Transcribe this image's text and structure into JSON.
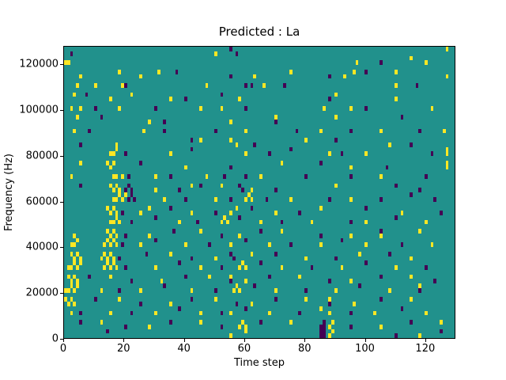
{
  "chart_data": {
    "type": "heatmap",
    "title": "Predicted : La",
    "xlabel": "Time step",
    "ylabel": "Frequency (Hz)",
    "x_ticks": [
      0,
      20,
      40,
      60,
      80,
      100,
      120
    ],
    "y_ticks": [
      0,
      20000,
      40000,
      60000,
      80000,
      100000,
      120000
    ],
    "x_range": [
      0,
      130
    ],
    "y_range": [
      0,
      128000
    ],
    "grid_cols": 130,
    "grid_rows": 64,
    "bin_hz": 2000,
    "legend": "none",
    "grid": false,
    "colors": {
      "background_mid": "#21918c",
      "high": "#fde724",
      "low": "#440154",
      "axes": "#000000",
      "figure_background": "#ffffff"
    },
    "yellow_cells": [
      [
        0,
        60
      ],
      [
        1,
        60
      ],
      [
        50,
        62
      ],
      [
        97,
        60
      ],
      [
        120,
        60
      ],
      [
        127,
        63
      ],
      [
        115,
        61
      ],
      [
        5,
        57
      ],
      [
        18,
        58
      ],
      [
        25,
        57
      ],
      [
        31,
        58
      ],
      [
        63,
        57
      ],
      [
        75,
        58
      ],
      [
        93,
        57
      ],
      [
        96,
        58
      ],
      [
        127,
        57
      ],
      [
        110,
        58
      ],
      [
        4,
        55
      ],
      [
        10,
        55
      ],
      [
        19,
        55
      ],
      [
        66,
        55
      ],
      [
        110,
        55
      ],
      [
        47,
        55
      ],
      [
        3,
        53
      ],
      [
        15,
        52
      ],
      [
        22,
        53
      ],
      [
        58,
        52
      ],
      [
        90,
        53
      ],
      [
        110,
        52
      ],
      [
        35,
        52
      ],
      [
        2,
        50
      ],
      [
        5,
        50
      ],
      [
        18,
        50
      ],
      [
        45,
        50
      ],
      [
        52,
        50
      ],
      [
        86,
        50
      ],
      [
        95,
        50
      ],
      [
        122,
        50
      ],
      [
        4,
        48
      ],
      [
        55,
        47
      ],
      [
        90,
        48
      ],
      [
        28,
        47
      ],
      [
        70,
        48
      ],
      [
        3,
        45
      ],
      [
        26,
        45
      ],
      [
        60,
        45
      ],
      [
        85,
        45
      ],
      [
        105,
        45
      ],
      [
        126,
        45
      ],
      [
        17,
        42
      ],
      [
        55,
        43
      ],
      [
        57,
        42
      ],
      [
        80,
        43
      ],
      [
        108,
        42
      ],
      [
        45,
        43
      ],
      [
        15,
        40
      ],
      [
        16,
        40
      ],
      [
        17,
        41
      ],
      [
        35,
        40
      ],
      [
        60,
        40
      ],
      [
        88,
        40
      ],
      [
        100,
        40
      ],
      [
        127,
        40
      ],
      [
        127,
        41
      ],
      [
        14,
        38
      ],
      [
        15,
        37
      ],
      [
        16,
        38
      ],
      [
        40,
        37
      ],
      [
        72,
        38
      ],
      [
        95,
        37
      ],
      [
        127,
        38
      ],
      [
        127,
        37
      ],
      [
        5,
        38
      ],
      [
        2,
        35
      ],
      [
        16,
        35
      ],
      [
        17,
        35
      ],
      [
        19,
        35
      ],
      [
        47,
        35
      ],
      [
        65,
        35
      ],
      [
        105,
        35
      ],
      [
        30,
        35
      ],
      [
        15,
        33
      ],
      [
        16,
        32
      ],
      [
        17,
        33
      ],
      [
        18,
        32
      ],
      [
        30,
        32
      ],
      [
        52,
        33
      ],
      [
        62,
        32
      ],
      [
        90,
        33
      ],
      [
        42,
        33
      ],
      [
        16,
        30
      ],
      [
        17,
        30
      ],
      [
        18,
        31
      ],
      [
        19,
        30
      ],
      [
        20,
        31
      ],
      [
        33,
        30
      ],
      [
        50,
        30
      ],
      [
        60,
        30
      ],
      [
        61,
        31
      ],
      [
        62,
        30
      ],
      [
        75,
        30
      ],
      [
        95,
        30
      ],
      [
        14,
        28
      ],
      [
        15,
        27
      ],
      [
        16,
        28
      ],
      [
        17,
        27
      ],
      [
        25,
        27
      ],
      [
        28,
        28
      ],
      [
        42,
        27
      ],
      [
        57,
        28
      ],
      [
        70,
        27
      ],
      [
        85,
        28
      ],
      [
        112,
        27
      ],
      [
        55,
        27
      ],
      [
        15,
        25
      ],
      [
        16,
        25
      ],
      [
        17,
        26
      ],
      [
        18,
        25
      ],
      [
        38,
        25
      ],
      [
        52,
        25
      ],
      [
        53,
        26
      ],
      [
        54,
        25
      ],
      [
        65,
        25
      ],
      [
        82,
        25
      ],
      [
        100,
        25
      ],
      [
        120,
        25
      ],
      [
        3,
        22
      ],
      [
        14,
        23
      ],
      [
        15,
        22
      ],
      [
        16,
        23
      ],
      [
        17,
        22
      ],
      [
        28,
        22
      ],
      [
        45,
        23
      ],
      [
        58,
        22
      ],
      [
        72,
        23
      ],
      [
        95,
        22
      ],
      [
        118,
        23
      ],
      [
        105,
        22
      ],
      [
        2,
        20
      ],
      [
        3,
        20
      ],
      [
        4,
        21
      ],
      [
        13,
        20
      ],
      [
        14,
        21
      ],
      [
        15,
        20
      ],
      [
        16,
        21
      ],
      [
        17,
        20
      ],
      [
        25,
        20
      ],
      [
        40,
        20
      ],
      [
        55,
        20
      ],
      [
        68,
        20
      ],
      [
        85,
        20
      ],
      [
        100,
        20
      ],
      [
        122,
        20
      ],
      [
        2,
        18
      ],
      [
        3,
        17
      ],
      [
        4,
        18
      ],
      [
        5,
        17
      ],
      [
        12,
        17
      ],
      [
        13,
        18
      ],
      [
        14,
        17
      ],
      [
        15,
        18
      ],
      [
        16,
        17
      ],
      [
        35,
        18
      ],
      [
        50,
        17
      ],
      [
        62,
        18
      ],
      [
        80,
        17
      ],
      [
        98,
        18
      ],
      [
        115,
        17
      ],
      [
        1,
        15
      ],
      [
        2,
        15
      ],
      [
        3,
        16
      ],
      [
        4,
        15
      ],
      [
        5,
        16
      ],
      [
        13,
        15
      ],
      [
        14,
        16
      ],
      [
        15,
        15
      ],
      [
        16,
        16
      ],
      [
        17,
        15
      ],
      [
        30,
        15
      ],
      [
        45,
        15
      ],
      [
        58,
        15
      ],
      [
        59,
        16
      ],
      [
        60,
        15
      ],
      [
        72,
        15
      ],
      [
        92,
        15
      ],
      [
        110,
        15
      ],
      [
        1,
        13
      ],
      [
        2,
        12
      ],
      [
        3,
        13
      ],
      [
        4,
        12
      ],
      [
        15,
        13
      ],
      [
        32,
        12
      ],
      [
        48,
        13
      ],
      [
        60,
        12
      ],
      [
        78,
        13
      ],
      [
        95,
        12
      ],
      [
        115,
        13
      ],
      [
        55,
        13
      ],
      [
        0,
        10
      ],
      [
        1,
        10
      ],
      [
        2,
        11
      ],
      [
        3,
        10
      ],
      [
        4,
        11
      ],
      [
        12,
        10
      ],
      [
        25,
        10
      ],
      [
        42,
        10
      ],
      [
        56,
        10
      ],
      [
        57,
        11
      ],
      [
        58,
        10
      ],
      [
        70,
        10
      ],
      [
        90,
        10
      ],
      [
        108,
        10
      ],
      [
        118,
        11
      ],
      [
        0,
        8
      ],
      [
        1,
        7
      ],
      [
        2,
        8
      ],
      [
        3,
        7
      ],
      [
        18,
        8
      ],
      [
        35,
        7
      ],
      [
        50,
        8
      ],
      [
        62,
        7
      ],
      [
        80,
        8
      ],
      [
        96,
        7
      ],
      [
        115,
        8
      ],
      [
        88,
        8
      ],
      [
        2,
        5
      ],
      [
        15,
        5
      ],
      [
        30,
        5
      ],
      [
        45,
        5
      ],
      [
        55,
        5
      ],
      [
        68,
        5
      ],
      [
        85,
        6
      ],
      [
        103,
        5
      ],
      [
        120,
        5
      ],
      [
        88,
        5
      ],
      [
        12,
        3
      ],
      [
        28,
        2
      ],
      [
        45,
        3
      ],
      [
        58,
        2
      ],
      [
        59,
        3
      ],
      [
        60,
        2
      ],
      [
        75,
        3
      ],
      [
        88,
        2
      ],
      [
        89,
        3
      ],
      [
        105,
        2
      ],
      [
        125,
        3
      ],
      [
        55,
        0
      ],
      [
        60,
        1
      ],
      [
        88,
        0
      ],
      [
        89,
        1
      ],
      [
        118,
        0
      ]
    ],
    "purple_cells": [
      [
        2,
        62
      ],
      [
        55,
        63
      ],
      [
        57,
        62
      ],
      [
        105,
        60
      ],
      [
        37,
        58
      ],
      [
        55,
        57
      ],
      [
        88,
        57
      ],
      [
        100,
        58
      ],
      [
        20,
        55
      ],
      [
        60,
        55
      ],
      [
        62,
        55
      ],
      [
        73,
        55
      ],
      [
        117,
        55
      ],
      [
        7,
        53
      ],
      [
        40,
        52
      ],
      [
        52,
        53
      ],
      [
        88,
        52
      ],
      [
        10,
        50
      ],
      [
        30,
        50
      ],
      [
        60,
        50
      ],
      [
        100,
        50
      ],
      [
        12,
        48
      ],
      [
        33,
        47
      ],
      [
        70,
        47
      ],
      [
        112,
        48
      ],
      [
        8,
        45
      ],
      [
        33,
        45
      ],
      [
        50,
        45
      ],
      [
        77,
        45
      ],
      [
        95,
        45
      ],
      [
        118,
        45
      ],
      [
        5,
        42
      ],
      [
        42,
        43
      ],
      [
        63,
        42
      ],
      [
        90,
        43
      ],
      [
        115,
        42
      ],
      [
        20,
        40
      ],
      [
        42,
        41
      ],
      [
        68,
        40
      ],
      [
        75,
        41
      ],
      [
        92,
        40
      ],
      [
        122,
        40
      ],
      [
        25,
        38
      ],
      [
        55,
        37
      ],
      [
        85,
        38
      ],
      [
        107,
        37
      ],
      [
        21,
        35
      ],
      [
        35,
        35
      ],
      [
        53,
        35
      ],
      [
        60,
        35
      ],
      [
        80,
        35
      ],
      [
        95,
        35
      ],
      [
        120,
        35
      ],
      [
        5,
        33
      ],
      [
        20,
        32
      ],
      [
        21,
        33
      ],
      [
        22,
        32
      ],
      [
        38,
        32
      ],
      [
        45,
        33
      ],
      [
        58,
        33
      ],
      [
        59,
        32
      ],
      [
        70,
        32
      ],
      [
        110,
        33
      ],
      [
        118,
        32
      ],
      [
        21,
        30
      ],
      [
        22,
        31
      ],
      [
        23,
        30
      ],
      [
        40,
        30
      ],
      [
        55,
        30
      ],
      [
        67,
        30
      ],
      [
        88,
        30
      ],
      [
        105,
        30
      ],
      [
        115,
        31
      ],
      [
        123,
        30
      ],
      [
        19,
        27
      ],
      [
        35,
        28
      ],
      [
        50,
        27
      ],
      [
        62,
        28
      ],
      [
        78,
        27
      ],
      [
        100,
        28
      ],
      [
        125,
        27
      ],
      [
        22,
        25
      ],
      [
        30,
        26
      ],
      [
        44,
        25
      ],
      [
        58,
        26
      ],
      [
        72,
        25
      ],
      [
        95,
        25
      ],
      [
        110,
        26
      ],
      [
        20,
        22
      ],
      [
        36,
        23
      ],
      [
        52,
        22
      ],
      [
        65,
        23
      ],
      [
        85,
        22
      ],
      [
        105,
        23
      ],
      [
        19,
        20
      ],
      [
        30,
        21
      ],
      [
        48,
        20
      ],
      [
        60,
        21
      ],
      [
        75,
        20
      ],
      [
        92,
        21
      ],
      [
        112,
        20
      ],
      [
        18,
        17
      ],
      [
        27,
        18
      ],
      [
        42,
        17
      ],
      [
        55,
        18
      ],
      [
        56,
        17
      ],
      [
        70,
        18
      ],
      [
        90,
        17
      ],
      [
        108,
        18
      ],
      [
        20,
        15
      ],
      [
        38,
        16
      ],
      [
        52,
        15
      ],
      [
        65,
        16
      ],
      [
        82,
        15
      ],
      [
        100,
        16
      ],
      [
        120,
        15
      ],
      [
        8,
        13
      ],
      [
        22,
        12
      ],
      [
        40,
        13
      ],
      [
        55,
        12
      ],
      [
        68,
        13
      ],
      [
        88,
        12
      ],
      [
        105,
        13
      ],
      [
        123,
        12
      ],
      [
        18,
        10
      ],
      [
        33,
        11
      ],
      [
        50,
        10
      ],
      [
        63,
        11
      ],
      [
        80,
        10
      ],
      [
        98,
        11
      ],
      [
        118,
        10
      ],
      [
        10,
        8
      ],
      [
        25,
        7
      ],
      [
        42,
        8
      ],
      [
        57,
        7
      ],
      [
        70,
        8
      ],
      [
        88,
        7
      ],
      [
        105,
        8
      ],
      [
        5,
        5
      ],
      [
        22,
        5
      ],
      [
        38,
        6
      ],
      [
        52,
        5
      ],
      [
        60,
        6
      ],
      [
        78,
        5
      ],
      [
        95,
        5
      ],
      [
        112,
        6
      ],
      [
        5,
        3
      ],
      [
        20,
        2
      ],
      [
        35,
        3
      ],
      [
        52,
        2
      ],
      [
        65,
        3
      ],
      [
        85,
        2
      ],
      [
        86,
        3
      ],
      [
        95,
        2
      ],
      [
        115,
        3
      ],
      [
        14,
        1
      ],
      [
        85,
        0
      ],
      [
        85,
        1
      ],
      [
        86,
        0
      ],
      [
        86,
        1
      ],
      [
        86,
        2
      ],
      [
        110,
        0
      ],
      [
        125,
        1
      ]
    ]
  }
}
